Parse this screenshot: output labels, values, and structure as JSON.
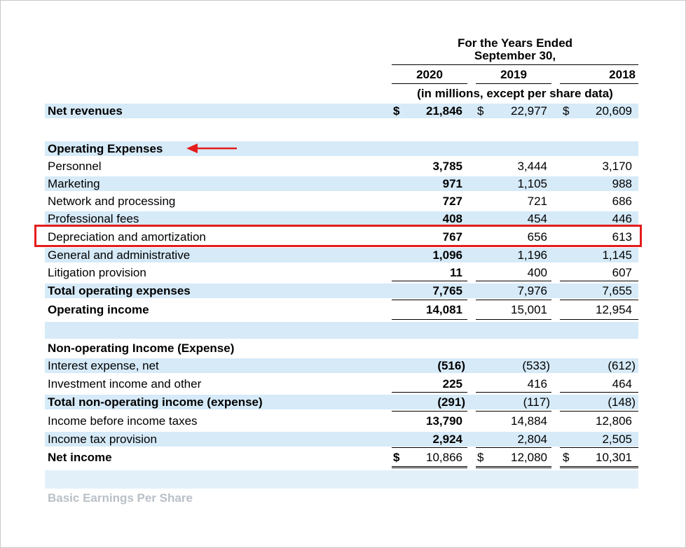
{
  "header": {
    "line1": "For the Years Ended",
    "line2": "September 30,",
    "years": [
      "2020",
      "2019",
      "2018"
    ],
    "units": "(in millions, except per share data)"
  },
  "rows": [
    {
      "label": "Net revenues",
      "v2020": "21,846",
      "v2019": "22,977",
      "v2018": "20,609",
      "currency": [
        "$",
        "$",
        "$"
      ]
    },
    {
      "label": "Operating Expenses"
    },
    {
      "label": "Personnel",
      "v2020": "3,785",
      "v2019": "3,444",
      "v2018": "3,170"
    },
    {
      "label": "Marketing",
      "v2020": "971",
      "v2019": "1,105",
      "v2018": "988"
    },
    {
      "label": "Network and processing",
      "v2020": "727",
      "v2019": "721",
      "v2018": "686"
    },
    {
      "label": "Professional fees",
      "v2020": "408",
      "v2019": "454",
      "v2018": "446"
    },
    {
      "label": "Depreciation and amortization",
      "v2020": "767",
      "v2019": "656",
      "v2018": "613"
    },
    {
      "label": "General and administrative",
      "v2020": "1,096",
      "v2019": "1,196",
      "v2018": "1,145"
    },
    {
      "label": "Litigation provision",
      "v2020": "11",
      "v2019": "400",
      "v2018": "607"
    },
    {
      "label": "Total operating expenses",
      "v2020": "7,765",
      "v2019": "7,976",
      "v2018": "7,655"
    },
    {
      "label": "Operating income",
      "v2020": "14,081",
      "v2019": "15,001",
      "v2018": "12,954"
    },
    {
      "label": "Non-operating Income (Expense)"
    },
    {
      "label": "Interest expense, net",
      "v2020": "(516)",
      "v2019": "(533)",
      "v2018": "(612)"
    },
    {
      "label": "Investment income and other",
      "v2020": "225",
      "v2019": "416",
      "v2018": "464"
    },
    {
      "label": "Total non-operating income (expense)",
      "v2020": "(291)",
      "v2019": "(117)",
      "v2018": "(148)"
    },
    {
      "label": "Income before income taxes",
      "v2020": "13,790",
      "v2019": "14,884",
      "v2018": "12,806"
    },
    {
      "label": "Income tax provision",
      "v2020": "2,924",
      "v2019": "2,804",
      "v2018": "2,505"
    },
    {
      "label": "Net income",
      "v2020": "10,866",
      "v2019": "12,080",
      "v2018": "10,301",
      "currency": [
        "$",
        "$",
        "$"
      ]
    },
    {
      "label": "Basic Earnings Per Share"
    }
  ],
  "annotations": {
    "highlight_color": "#e51c1c",
    "row_shade_color": "#d6eaf8",
    "arrow_icon": "left-arrow-icon"
  }
}
